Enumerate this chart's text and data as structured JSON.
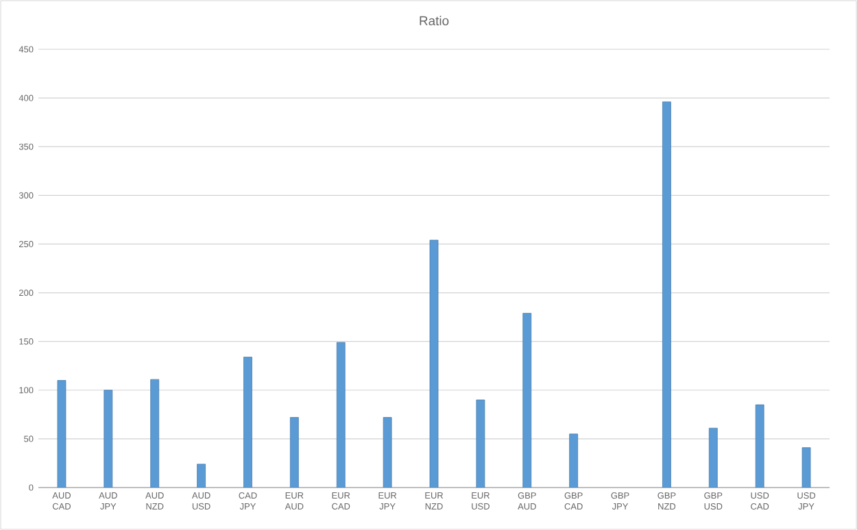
{
  "chart_data": {
    "type": "bar",
    "title": "Ratio",
    "categories": [
      "AUD CAD",
      "AUD JPY",
      "AUD NZD",
      "AUD USD",
      "CAD JPY",
      "EUR AUD",
      "EUR CAD",
      "EUR JPY",
      "EUR NZD",
      "EUR USD",
      "GBP AUD",
      "GBP CAD",
      "GBP JPY",
      "GBP NZD",
      "GBP USD",
      "USD CAD",
      "USD JPY"
    ],
    "values": [
      110,
      100,
      111,
      24,
      134,
      72,
      149,
      72,
      254,
      90,
      179,
      55,
      null,
      396,
      61,
      85,
      41
    ],
    "color": "#5b9bd5",
    "ylim": [
      0,
      450
    ],
    "yticks": [
      0,
      50,
      100,
      150,
      200,
      250,
      300,
      350,
      400,
      450
    ],
    "grid": "y"
  }
}
